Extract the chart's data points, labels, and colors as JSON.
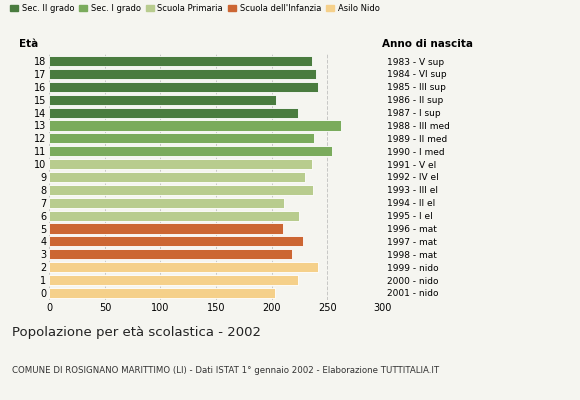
{
  "ages": [
    18,
    17,
    16,
    15,
    14,
    13,
    12,
    11,
    10,
    9,
    8,
    7,
    6,
    5,
    4,
    3,
    2,
    1,
    0
  ],
  "values": [
    236,
    240,
    242,
    204,
    224,
    262,
    238,
    254,
    236,
    230,
    237,
    211,
    225,
    210,
    228,
    218,
    242,
    224,
    203
  ],
  "right_labels": [
    "1983 - V sup",
    "1984 - VI sup",
    "1985 - III sup",
    "1986 - II sup",
    "1987 - I sup",
    "1988 - III med",
    "1989 - II med",
    "1990 - I med",
    "1991 - V el",
    "1992 - IV el",
    "1993 - III el",
    "1994 - II el",
    "1995 - I el",
    "1996 - mat",
    "1997 - mat",
    "1998 - mat",
    "1999 - nido",
    "2000 - nido",
    "2001 - nido"
  ],
  "colors": [
    "#4a7c3f",
    "#4a7c3f",
    "#4a7c3f",
    "#4a7c3f",
    "#4a7c3f",
    "#7aab5c",
    "#7aab5c",
    "#7aab5c",
    "#b8cc8e",
    "#b8cc8e",
    "#b8cc8e",
    "#b8cc8e",
    "#b8cc8e",
    "#cc6633",
    "#cc6633",
    "#cc6633",
    "#f5d08a",
    "#f5d08a",
    "#f5d08a"
  ],
  "legend_labels": [
    "Sec. II grado",
    "Sec. I grado",
    "Scuola Primaria",
    "Scuola dell'Infanzia",
    "Asilo Nido"
  ],
  "legend_colors": [
    "#4a7c3f",
    "#7aab5c",
    "#b8cc8e",
    "#cc6633",
    "#f5d08a"
  ],
  "title": "Popolazione per età scolastica - 2002",
  "subtitle": "COMUNE DI ROSIGNANO MARITTIMO (LI) - Dati ISTAT 1° gennaio 2002 - Elaborazione TUTTITALIA.IT",
  "xlabel_eta": "Età",
  "xlabel_anno": "Anno di nascita",
  "xlim": [
    0,
    300
  ],
  "xticks": [
    0,
    50,
    100,
    150,
    200,
    250,
    300
  ],
  "bar_height": 0.78,
  "background_color": "#f5f5f0",
  "grid_color": "#bbbbbb"
}
